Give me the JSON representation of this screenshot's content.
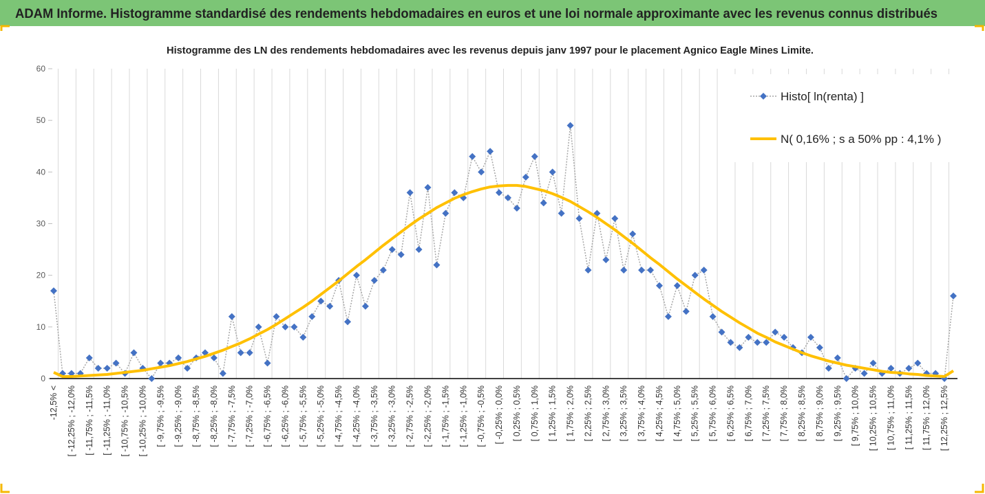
{
  "page_title": "ADAM Informe. Histogramme standardisé des rendements hebdomadaires en euros et une loi normale approximante avec les revenus connus distribués",
  "chart_data": {
    "type": "line",
    "title": "Histogramme des LN des rendements hebdomadaires avec les revenus depuis janv 1997 pour le placement Agnico Eagle Mines Limite.",
    "categories": [
      "-12,5% <",
      null,
      "[ -12,25% ; -12,0%",
      null,
      "[ -11,75% ; -11,5%",
      null,
      "[ -11,25% ; -11,0%",
      null,
      "[ -10,75% ; -10,5%",
      null,
      "[ -10,25% ; -10,0%",
      null,
      "[ -9,75% ; -9,5%",
      null,
      "[ -9,25% ; -9,0%",
      null,
      "[ -8,75% ; -8,5%",
      null,
      "[ -8,25% ; -8,0%",
      null,
      "[ -7,75% ; -7,5%",
      null,
      "[ -7,25% ; -7,0%",
      null,
      "[ -6,75% ; -6,5%",
      null,
      "[ -6,25% ; -6,0%",
      null,
      "[ -5,75% ; -5,5%",
      null,
      "[ -5,25% ; -5,0%",
      null,
      "[ -4,75% ; -4,5%",
      null,
      "[ -4,25% ; -4,0%",
      null,
      "[ -3,75% ; -3,5%",
      null,
      "[ -3,25% ; -3,0%",
      null,
      "[ -2,75% ; -2,5%",
      null,
      "[ -2,25% ; -2,0%",
      null,
      "[ -1,75% ; -1,5%",
      null,
      "[ -1,25% ; -1,0%",
      null,
      "[ -0,75% ; -0,5%",
      null,
      "[ -0,25% ; 0,0%",
      null,
      "[ 0,25% ; 0,5%",
      null,
      "[ 0,75% ; 1,0%",
      null,
      "[ 1,25% ; 1,5%",
      null,
      "[ 1,75% ; 2,0%",
      null,
      "[ 2,25% ; 2,5%",
      null,
      "[ 2,75% ; 3,0%",
      null,
      "[ 3,25% ; 3,5%",
      null,
      "[ 3,75% ; 4,0%",
      null,
      "[ 4,25% ; 4,5%",
      null,
      "[ 4,75% ; 5,0%",
      null,
      "[ 5,25% ; 5,5%",
      null,
      "[ 5,75% ; 6,0%",
      null,
      "[ 6,25% ; 6,5%",
      null,
      "[ 6,75% ; 7,0%",
      null,
      "[ 7,25% ; 7,5%",
      null,
      "[ 7,75% ; 8,0%",
      null,
      "[ 8,25% ; 8,5%",
      null,
      "[ 8,75% ; 9,0%",
      null,
      "[ 9,25% ; 9,5%",
      null,
      "[ 9,75% ; 10,0%",
      null,
      "[ 10,25% ; 10,5%",
      null,
      "[ 10,75% ; 11,0%",
      null,
      "[ 11,25% ; 11,5%",
      null,
      "[ 11,75% ; 12,0%",
      null,
      "[ 12,25% ; 12,5%",
      null
    ],
    "series": [
      {
        "name": "Histo[ ln(renta) ]",
        "color": "#4472c4",
        "line_color": "#a6a6a6",
        "dashed": true,
        "marker": "diamond",
        "values": [
          17,
          1,
          1,
          1,
          4,
          2,
          2,
          3,
          1,
          5,
          2,
          0,
          3,
          3,
          4,
          2,
          4,
          5,
          4,
          1,
          12,
          5,
          5,
          10,
          3,
          12,
          10,
          10,
          8,
          12,
          15,
          14,
          19,
          11,
          20,
          14,
          19,
          21,
          25,
          24,
          36,
          25,
          37,
          22,
          32,
          36,
          35,
          43,
          40,
          44,
          36,
          35,
          33,
          39,
          43,
          34,
          40,
          32,
          49,
          31,
          21,
          32,
          23,
          31,
          21,
          28,
          21,
          21,
          18,
          12,
          18,
          13,
          20,
          21,
          12,
          9,
          7,
          6,
          8,
          7,
          7,
          9,
          8,
          6,
          5,
          8,
          6,
          2,
          4,
          0,
          2,
          1,
          3,
          1,
          2,
          1,
          2,
          3,
          1,
          1,
          0,
          16
        ]
      },
      {
        "name": "N( 0,16% ; s a 50% pp : 4,1% )",
        "color": "#ffc000",
        "line_color": "#ffc000",
        "dashed": false,
        "marker": null,
        "values": [
          1.2,
          0.4,
          0.4,
          0.5,
          0.6,
          0.7,
          0.8,
          1.0,
          1.2,
          1.4,
          1.6,
          1.9,
          2.2,
          2.5,
          2.9,
          3.3,
          3.8,
          4.3,
          4.9,
          5.5,
          6.2,
          6.9,
          7.7,
          8.6,
          9.5,
          10.5,
          11.6,
          12.7,
          13.8,
          15.0,
          16.3,
          17.6,
          18.9,
          20.3,
          21.7,
          23.0,
          24.4,
          25.8,
          27.1,
          28.4,
          29.7,
          30.9,
          32.0,
          33.1,
          34.0,
          34.9,
          35.6,
          36.2,
          36.7,
          37.1,
          37.3,
          37.4,
          37.4,
          37.2,
          36.8,
          36.4,
          35.8,
          35.1,
          34.3,
          33.3,
          32.3,
          31.2,
          30.0,
          28.8,
          27.5,
          26.2,
          24.8,
          23.4,
          22.1,
          20.7,
          19.3,
          18.0,
          16.7,
          15.4,
          14.2,
          13.0,
          11.9,
          10.8,
          9.8,
          8.8,
          8.0,
          7.1,
          6.4,
          5.7,
          5.0,
          4.4,
          3.9,
          3.4,
          3.0,
          2.6,
          2.3,
          2.0,
          1.7,
          1.4,
          1.2,
          1.1,
          0.9,
          0.8,
          0.6,
          0.5,
          0.4,
          1.5
        ]
      }
    ],
    "ylim": [
      0,
      60
    ],
    "yticks": [
      0,
      10,
      20,
      30,
      40,
      50,
      60
    ],
    "grid": false,
    "xgrid": true,
    "legend": "top-right"
  }
}
